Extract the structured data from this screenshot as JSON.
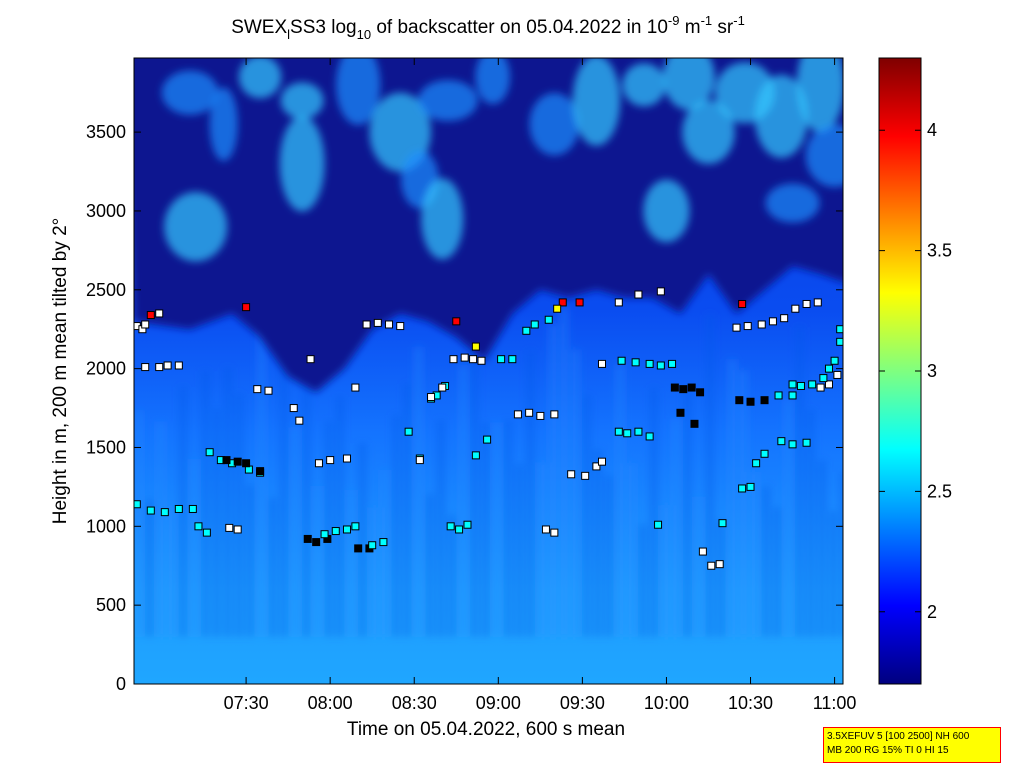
{
  "chart_data": {
    "type": "heatmap",
    "title_parts": {
      "prefix": "SWEX",
      "sub1": "l",
      "mid": "SS3 log",
      "sub2": "10",
      "middle": " of backscatter on 05.04.2022 in 10",
      "sup1": "-9",
      "m_unit": " m",
      "sup2": "-1",
      "sr_unit": " sr",
      "sup3": "-1"
    },
    "xlabel": "Time on 05.04.2022, 600 s mean",
    "ylabel": "Height in m, 200 m mean tilted by 2°",
    "x_ticks": [
      "07:30",
      "08:00",
      "08:30",
      "09:00",
      "09:30",
      "10:00",
      "10:30",
      "11:00"
    ],
    "x_tick_minutes": [
      450,
      480,
      510,
      540,
      570,
      600,
      630,
      660
    ],
    "xlim_minutes": [
      410,
      663
    ],
    "y_ticks": [
      0,
      500,
      1000,
      1500,
      2000,
      2500,
      3000,
      3500
    ],
    "ylim": [
      0,
      3970
    ],
    "colorbar": {
      "ticks": [
        2,
        2.5,
        3,
        3.5,
        4
      ],
      "tick_labels": [
        "2",
        "2.5",
        "3",
        "3.5",
        "4"
      ],
      "range": [
        1.7,
        4.3
      ]
    },
    "colormap": "jet",
    "layer_top_profile": {
      "times": [
        410,
        430,
        445,
        455,
        465,
        475,
        485,
        495,
        505,
        515,
        525,
        535,
        545,
        555,
        565,
        575,
        585,
        595,
        605,
        615,
        625,
        635,
        645,
        655,
        663
      ],
      "heights": [
        2300,
        2250,
        2350,
        2200,
        1950,
        1850,
        2000,
        2250,
        2350,
        2300,
        2200,
        2050,
        2350,
        2500,
        2450,
        2500,
        2450,
        2450,
        2350,
        2600,
        2350,
        2500,
        2650,
        2600,
        2550
      ]
    },
    "marker_tracks": [
      {
        "color": "#ffffff",
        "points": [
          [
            411,
            2270
          ],
          [
            413,
            2250
          ],
          [
            414,
            2280
          ],
          [
            419,
            2350
          ],
          [
            414,
            2010
          ],
          [
            419,
            2010
          ],
          [
            422,
            2020
          ],
          [
            426,
            2020
          ]
        ]
      },
      {
        "color": "#ff0000",
        "points": [
          [
            416,
            2340
          ],
          [
            450,
            2390
          ],
          [
            525,
            2300
          ],
          [
            563,
            2420
          ],
          [
            569,
            2420
          ],
          [
            627,
            2410
          ]
        ]
      },
      {
        "color": "#00ffff",
        "points": [
          [
            411,
            1140
          ],
          [
            416,
            1100
          ],
          [
            421,
            1090
          ],
          [
            426,
            1110
          ],
          [
            431,
            1110
          ],
          [
            437,
            1470
          ],
          [
            441,
            1420
          ],
          [
            445,
            1400
          ],
          [
            451,
            1360
          ],
          [
            455,
            1340
          ],
          [
            433,
            1000
          ],
          [
            436,
            960
          ]
        ]
      },
      {
        "color": "#ffffff",
        "points": [
          [
            444,
            990
          ],
          [
            447,
            980
          ],
          [
            454,
            1870
          ],
          [
            458,
            1860
          ],
          [
            467,
            1750
          ],
          [
            469,
            1670
          ],
          [
            473,
            2060
          ],
          [
            476,
            1400
          ],
          [
            480,
            1420
          ],
          [
            486,
            1430
          ],
          [
            489,
            1880
          ]
        ]
      },
      {
        "color": "#000000",
        "points": [
          [
            443,
            1420
          ],
          [
            447,
            1410
          ],
          [
            450,
            1400
          ],
          [
            455,
            1350
          ],
          [
            472,
            920
          ],
          [
            475,
            900
          ],
          [
            479,
            920
          ],
          [
            490,
            860
          ],
          [
            494,
            860
          ]
        ]
      },
      {
        "color": "#00ffff",
        "points": [
          [
            478,
            950
          ],
          [
            482,
            970
          ],
          [
            486,
            980
          ],
          [
            489,
            1000
          ],
          [
            495,
            880
          ],
          [
            499,
            900
          ],
          [
            508,
            1600
          ],
          [
            512,
            1430
          ],
          [
            516,
            1810
          ],
          [
            518,
            1830
          ],
          [
            521,
            1890
          ]
        ]
      },
      {
        "color": "#ffffff",
        "points": [
          [
            493,
            2280
          ],
          [
            497,
            2290
          ],
          [
            501,
            2280
          ],
          [
            505,
            2270
          ],
          [
            512,
            1420
          ],
          [
            516,
            1820
          ],
          [
            520,
            1880
          ],
          [
            524,
            2060
          ],
          [
            528,
            2070
          ],
          [
            531,
            2060
          ],
          [
            534,
            2050
          ]
        ]
      },
      {
        "color": "#00ffff",
        "points": [
          [
            523,
            1000
          ],
          [
            526,
            980
          ],
          [
            529,
            1010
          ],
          [
            532,
            1450
          ],
          [
            536,
            1550
          ],
          [
            541,
            2060
          ],
          [
            545,
            2060
          ],
          [
            550,
            2240
          ],
          [
            553,
            2280
          ],
          [
            558,
            2310
          ]
        ]
      },
      {
        "color": "#ffffff",
        "points": [
          [
            547,
            1710
          ],
          [
            551,
            1720
          ],
          [
            555,
            1700
          ],
          [
            560,
            1710
          ],
          [
            557,
            980
          ],
          [
            560,
            960
          ],
          [
            566,
            1330
          ],
          [
            571,
            1320
          ],
          [
            575,
            1380
          ],
          [
            577,
            1410
          ]
        ]
      },
      {
        "color": "#ffff00",
        "points": [
          [
            532,
            2140
          ],
          [
            561,
            2380
          ]
        ]
      },
      {
        "color": "#00ffff",
        "points": [
          [
            583,
            1600
          ],
          [
            586,
            1590
          ],
          [
            590,
            1600
          ],
          [
            594,
            1570
          ],
          [
            597,
            1010
          ],
          [
            584,
            2050
          ],
          [
            589,
            2040
          ],
          [
            594,
            2030
          ],
          [
            598,
            2020
          ],
          [
            602,
            2030
          ]
        ]
      },
      {
        "color": "#ffffff",
        "points": [
          [
            577,
            2030
          ],
          [
            583,
            2420
          ],
          [
            590,
            2470
          ],
          [
            598,
            2490
          ],
          [
            613,
            840
          ],
          [
            616,
            750
          ],
          [
            619,
            760
          ]
        ]
      },
      {
        "color": "#000000",
        "points": [
          [
            603,
            1880
          ],
          [
            606,
            1870
          ],
          [
            609,
            1880
          ],
          [
            612,
            1850
          ],
          [
            605,
            1720
          ],
          [
            610,
            1650
          ],
          [
            626,
            1800
          ],
          [
            630,
            1790
          ],
          [
            635,
            1800
          ]
        ]
      },
      {
        "color": "#00ffff",
        "points": [
          [
            620,
            1020
          ],
          [
            627,
            1240
          ],
          [
            630,
            1250
          ],
          [
            632,
            1400
          ],
          [
            635,
            1460
          ],
          [
            641,
            1540
          ],
          [
            645,
            1520
          ],
          [
            650,
            1530
          ],
          [
            640,
            1830
          ],
          [
            645,
            1830
          ]
        ]
      },
      {
        "color": "#ffffff",
        "points": [
          [
            625,
            2260
          ],
          [
            629,
            2270
          ],
          [
            634,
            2280
          ],
          [
            638,
            2300
          ],
          [
            642,
            2320
          ],
          [
            646,
            2380
          ],
          [
            650,
            2410
          ],
          [
            654,
            2420
          ],
          [
            655,
            1880
          ],
          [
            658,
            1900
          ],
          [
            661,
            1960
          ]
        ]
      },
      {
        "color": "#00ffff",
        "points": [
          [
            645,
            1900
          ],
          [
            648,
            1890
          ],
          [
            652,
            1900
          ],
          [
            656,
            1940
          ],
          [
            658,
            2000
          ],
          [
            660,
            2050
          ],
          [
            662,
            2250
          ],
          [
            662,
            2170
          ]
        ]
      }
    ]
  },
  "info_box": {
    "line1": "3.5XEFUV 5 [100 2500] NH 600",
    "line2": "MB 200 RG 15% TI 0 HI 15"
  }
}
